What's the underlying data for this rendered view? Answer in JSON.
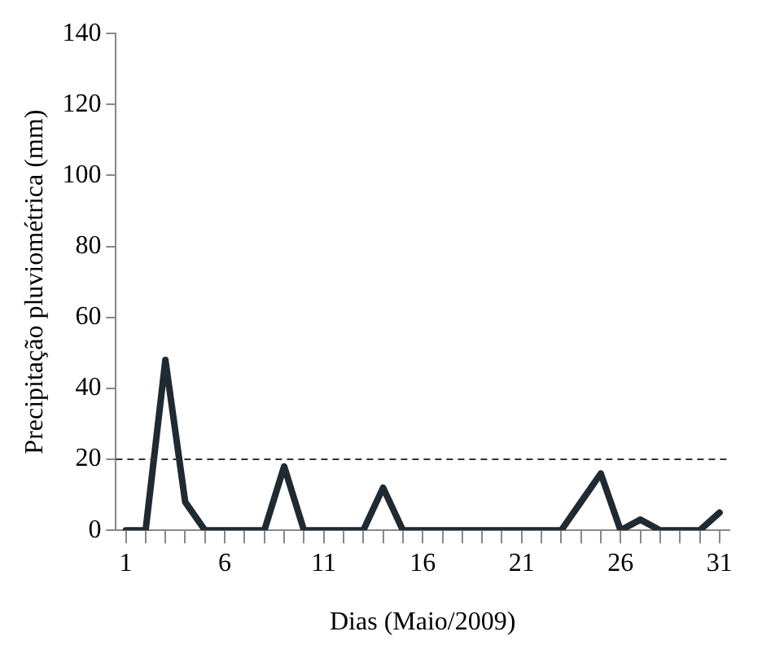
{
  "chart_data": {
    "type": "line",
    "xlabel": "Dias (Maio/2009)",
    "ylabel": "Precipitação pluviométrica (mm)",
    "x": [
      1,
      2,
      3,
      4,
      5,
      6,
      7,
      8,
      9,
      10,
      11,
      12,
      13,
      14,
      15,
      16,
      17,
      18,
      19,
      20,
      21,
      22,
      23,
      24,
      25,
      26,
      27,
      28,
      29,
      30,
      31
    ],
    "series": [
      {
        "color": "#1f2a33",
        "values": [
          0,
          0,
          48,
          8,
          0,
          0,
          0,
          0,
          18,
          0,
          0,
          0,
          0,
          12,
          0,
          0,
          0,
          0,
          0,
          0,
          0,
          0,
          0,
          8,
          16,
          0,
          3,
          0,
          0,
          0,
          5
        ]
      }
    ],
    "xlim": [
      0.5,
      31.5
    ],
    "xticks": [
      1,
      {
        "value": 2,
        "label": null
      },
      {
        "value": 3,
        "label": null
      },
      {
        "value": 4,
        "label": null
      },
      {
        "value": 5,
        "label": null
      },
      6,
      {
        "value": 7,
        "label": null
      },
      {
        "value": 8,
        "label": null
      },
      {
        "value": 9,
        "label": null
      },
      {
        "value": 10,
        "label": null
      },
      11,
      {
        "value": 12,
        "label": null
      },
      {
        "value": 13,
        "label": null
      },
      {
        "value": 14,
        "label": null
      },
      {
        "value": 15,
        "label": null
      },
      16,
      {
        "value": 17,
        "label": null
      },
      {
        "value": 18,
        "label": null
      },
      {
        "value": 19,
        "label": null
      },
      {
        "value": 20,
        "label": null
      },
      21,
      {
        "value": 22,
        "label": null
      },
      {
        "value": 23,
        "label": null
      },
      {
        "value": 24,
        "label": null
      },
      {
        "value": 25,
        "label": null
      },
      26,
      {
        "value": 27,
        "label": null
      },
      {
        "value": 28,
        "label": null
      },
      {
        "value": 29,
        "label": null
      },
      {
        "value": 30,
        "label": null
      },
      31
    ],
    "ylim": [
      0,
      140
    ],
    "yticks": [
      0,
      20,
      40,
      60,
      80,
      100,
      120,
      140
    ],
    "ref_lines": [
      {
        "axis": "y",
        "value": 20,
        "color": "#333333",
        "line_style": "dashed"
      }
    ],
    "grid": false,
    "legend": false,
    "marker": "none",
    "line_style": "solid"
  }
}
